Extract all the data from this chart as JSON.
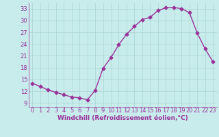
{
  "x": [
    0,
    1,
    2,
    3,
    4,
    5,
    6,
    7,
    8,
    9,
    10,
    11,
    12,
    13,
    14,
    15,
    16,
    17,
    18,
    19,
    20,
    21,
    22,
    23
  ],
  "y": [
    14.0,
    13.2,
    12.3,
    11.7,
    11.1,
    10.5,
    10.3,
    9.8,
    12.2,
    17.8,
    20.5,
    23.8,
    26.5,
    28.5,
    30.2,
    30.8,
    32.5,
    33.2,
    33.3,
    33.0,
    32.0,
    26.8,
    22.8,
    19.5
  ],
  "color": "#993399",
  "bg_color": "#c8ecec",
  "xlabel": "Windchill (Refroidissement éolien,°C)",
  "yticks": [
    9,
    12,
    15,
    18,
    21,
    24,
    27,
    30,
    33
  ],
  "xticks": [
    0,
    1,
    2,
    3,
    4,
    5,
    6,
    7,
    8,
    9,
    10,
    11,
    12,
    13,
    14,
    15,
    16,
    17,
    18,
    19,
    20,
    21,
    22,
    23
  ],
  "ylim": [
    8.0,
    34.5
  ],
  "xlim": [
    -0.5,
    23.5
  ],
  "grid_color": "#aad4d4",
  "marker": "D",
  "markersize": 2.5,
  "linewidth": 1.0,
  "xlabel_fontsize": 6.5,
  "tick_fontsize": 6.0
}
